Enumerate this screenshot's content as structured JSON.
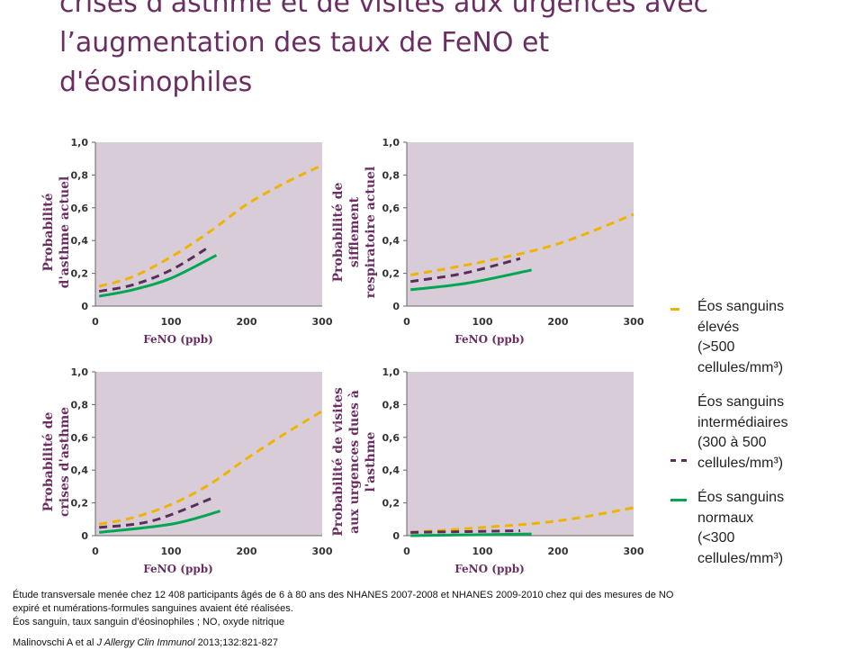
{
  "title_lines": [
    "crises d'asthme et de visites aux urgences avec",
    "l’augmentation des taux de FeNO et",
    "d'éosinophiles"
  ],
  "colors": {
    "title": "#6b2e62",
    "plot_bg": "#d8ccd8",
    "eleves": "#f0b400",
    "intermediaires": "#5a2d5a",
    "normaux": "#00a651"
  },
  "legend": [
    {
      "lines": [
        "Éos sanguins",
        "élevés",
        "(>500",
        "cellules/mm³)"
      ],
      "color": "#f0b400",
      "style": "dashed",
      "marker": "–"
    },
    {
      "lines": [
        "Éos sanguins",
        "intermédiaires",
        "(300 à 500",
        "cellules/mm³)"
      ],
      "color": "#5a2d5a",
      "style": "dashed",
      "marker": "– –"
    },
    {
      "lines": [
        "Éos sanguins",
        "normaux",
        "(<300",
        "cellules/mm³)"
      ],
      "color": "#00a651",
      "style": "solid",
      "marker": "—"
    }
  ],
  "chart_data": [
    {
      "type": "line",
      "ylabel": [
        "Probabilité",
        "d'asthme actuel"
      ],
      "xlabel": "FeNO (ppb)",
      "x_ticks": [
        "0",
        "100",
        "200",
        "300"
      ],
      "y_ticks": [
        "0",
        "0,2",
        "0,4",
        "0,6",
        "0,8",
        "1,0"
      ],
      "xlim": [
        0,
        300
      ],
      "ylim": [
        0,
        1.0
      ],
      "grid": false,
      "series": [
        {
          "key": "eleves",
          "x": [
            5,
            50,
            100,
            150,
            200,
            250,
            300
          ],
          "y": [
            0.12,
            0.18,
            0.3,
            0.45,
            0.62,
            0.75,
            0.86
          ]
        },
        {
          "key": "intermediaires",
          "x": [
            5,
            50,
            100,
            150
          ],
          "y": [
            0.09,
            0.13,
            0.22,
            0.36
          ]
        },
        {
          "key": "normaux",
          "x": [
            5,
            50,
            100,
            160
          ],
          "y": [
            0.06,
            0.1,
            0.17,
            0.31
          ]
        }
      ]
    },
    {
      "type": "line",
      "ylabel": [
        "Probabilité de",
        "sifflement",
        "respiratoire actuel"
      ],
      "xlabel": "FeNO (ppb)",
      "x_ticks": [
        "0",
        "100",
        "200",
        "300"
      ],
      "y_ticks": [
        "0",
        "0,2",
        "0,4",
        "0,6",
        "0,8",
        "1,0"
      ],
      "xlim": [
        0,
        300
      ],
      "ylim": [
        0,
        1.0
      ],
      "grid": false,
      "series": [
        {
          "key": "eleves",
          "x": [
            5,
            100,
            200,
            300
          ],
          "y": [
            0.19,
            0.27,
            0.38,
            0.56
          ]
        },
        {
          "key": "intermediaires",
          "x": [
            5,
            75,
            150
          ],
          "y": [
            0.15,
            0.2,
            0.29
          ]
        },
        {
          "key": "normaux",
          "x": [
            5,
            80,
            165
          ],
          "y": [
            0.1,
            0.14,
            0.22
          ]
        }
      ]
    },
    {
      "type": "line",
      "ylabel": [
        "Probabilité de",
        "crises d'asthme"
      ],
      "xlabel": "FeNO (ppb)",
      "x_ticks": [
        "0",
        "100",
        "200",
        "300"
      ],
      "y_ticks": [
        "0",
        "0,2",
        "0,4",
        "0,6",
        "0,8",
        "1,0"
      ],
      "xlim": [
        0,
        300
      ],
      "ylim": [
        0,
        1.0
      ],
      "grid": false,
      "series": [
        {
          "key": "eleves",
          "x": [
            5,
            50,
            100,
            150,
            200,
            250,
            300
          ],
          "y": [
            0.07,
            0.11,
            0.19,
            0.31,
            0.47,
            0.62,
            0.76
          ]
        },
        {
          "key": "intermediaires",
          "x": [
            5,
            75,
            155
          ],
          "y": [
            0.05,
            0.09,
            0.23
          ]
        },
        {
          "key": "normaux",
          "x": [
            5,
            100,
            165
          ],
          "y": [
            0.02,
            0.07,
            0.15
          ]
        }
      ]
    },
    {
      "type": "line",
      "ylabel": [
        "Probabilité de visites",
        "aux urgences dues à",
        "l'asthme"
      ],
      "xlabel": "FeNO (ppb)",
      "x_ticks": [
        "0",
        "100",
        "200",
        "300"
      ],
      "y_ticks": [
        "0",
        "0,2",
        "0,4",
        "0,6",
        "0,8",
        "1,0"
      ],
      "xlim": [
        0,
        300
      ],
      "ylim": [
        0,
        1.0
      ],
      "grid": false,
      "series": [
        {
          "key": "eleves",
          "x": [
            5,
            100,
            200,
            300
          ],
          "y": [
            0.02,
            0.05,
            0.09,
            0.17
          ]
        },
        {
          "key": "intermediaires",
          "x": [
            5,
            150
          ],
          "y": [
            0.02,
            0.03
          ]
        },
        {
          "key": "normaux",
          "x": [
            5,
            165
          ],
          "y": [
            0.0,
            0.01
          ]
        }
      ]
    }
  ],
  "footnotes": [
    "Étude transversale  menée chez 12 408 participants  âgés de 6 à 80 ans des NHANES 2007-2008 et NHANES 2009-2010 chez qui des mesures  de NO expiré  et numérations-formules  sanguines avaient été réalisées.",
    "Éos sanguin,  taux sanguin d’éosinophiles  ; NO, oxyde nitrique"
  ],
  "citation": {
    "authors": "Malinovschi  A  et al",
    "journal": "J Allergy Clin  Immunol",
    "ref": "2013;132:821-827"
  }
}
